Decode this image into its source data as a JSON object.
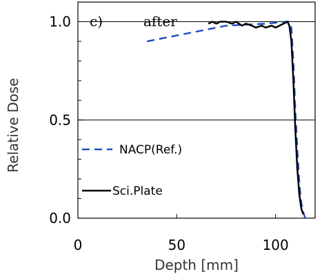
{
  "chart_data": {
    "type": "line",
    "panel_label": "c)",
    "annotation": "after",
    "xlabel": "Depth [mm]",
    "ylabel": "Relative Dose",
    "xlim": [
      0,
      120
    ],
    "ylim": [
      0.0,
      1.1
    ],
    "x_ticks": [
      0,
      50,
      100
    ],
    "x_tick_labels": [
      "0",
      "50",
      "100"
    ],
    "y_ticks": [
      0.0,
      0.5,
      1.0
    ],
    "y_tick_labels": [
      "0.0",
      "0.5",
      "1.0"
    ],
    "reference_lines": [
      1.0,
      0.5
    ],
    "legend_position": "left",
    "series": [
      {
        "name": "NACP(Ref.)",
        "style": "dashed",
        "color": "#1f4fbf",
        "x": [
          35,
          45,
          55,
          65,
          75,
          85,
          95,
          100,
          105,
          107,
          108,
          109,
          110,
          111,
          112,
          113,
          114,
          115
        ],
        "y": [
          0.9,
          0.92,
          0.94,
          0.96,
          0.98,
          0.985,
          0.99,
          0.995,
          1.0,
          1.0,
          0.97,
          0.8,
          0.55,
          0.35,
          0.18,
          0.08,
          0.03,
          0.0
        ]
      },
      {
        "name": "Sci.Plate",
        "style": "solid",
        "color": "#000000",
        "x": [
          66,
          68,
          70,
          72,
          75,
          78,
          80,
          83,
          85,
          88,
          90,
          93,
          95,
          98,
          100,
          102,
          104,
          106,
          107,
          108,
          109,
          110,
          111,
          112,
          113,
          114
        ],
        "y": [
          0.99,
          1.0,
          0.99,
          1.0,
          1.0,
          0.99,
          1.0,
          0.98,
          0.99,
          0.98,
          0.97,
          0.98,
          0.97,
          0.98,
          0.97,
          0.98,
          0.99,
          1.0,
          0.98,
          0.9,
          0.7,
          0.45,
          0.25,
          0.12,
          0.05,
          0.02
        ]
      }
    ]
  }
}
